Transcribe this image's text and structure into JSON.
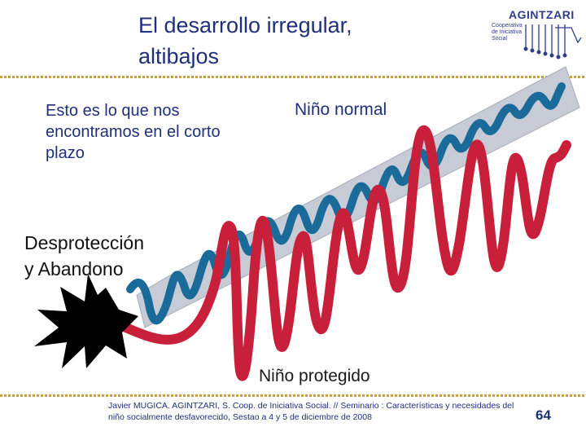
{
  "title": {
    "line1": "El desarrollo irregular,",
    "line2": "altibajos"
  },
  "logo": {
    "name": "AGINTZARI",
    "sub_lines": [
      "Cooperativa",
      "de Iniciativa",
      "Social"
    ],
    "color": "#2f3d8c"
  },
  "labels": {
    "short_term": "Esto es lo que nos encontramos  en el corto plazo",
    "normal_child": "Niño normal",
    "neglect_line1": "Desprotección",
    "neglect_line2": "y Abandono",
    "protected_child": "Niño protegido"
  },
  "colors": {
    "trend_band": "#c7cbd6",
    "normal_wave": "#1a6a9a",
    "protected_wave": "#c8203a",
    "burst": "#000000",
    "text": "#1f2f7a",
    "rule": "#c8a23c"
  },
  "footer": {
    "citation": "Javier MUGICA. AGINTZARI, S. Coop. de Iniciativa Social. //  Seminario : Características y necesidades del niño socialmente desfavorecido, Sestao a 4 y 5 de diciembre de 2008",
    "page_number": "64"
  }
}
